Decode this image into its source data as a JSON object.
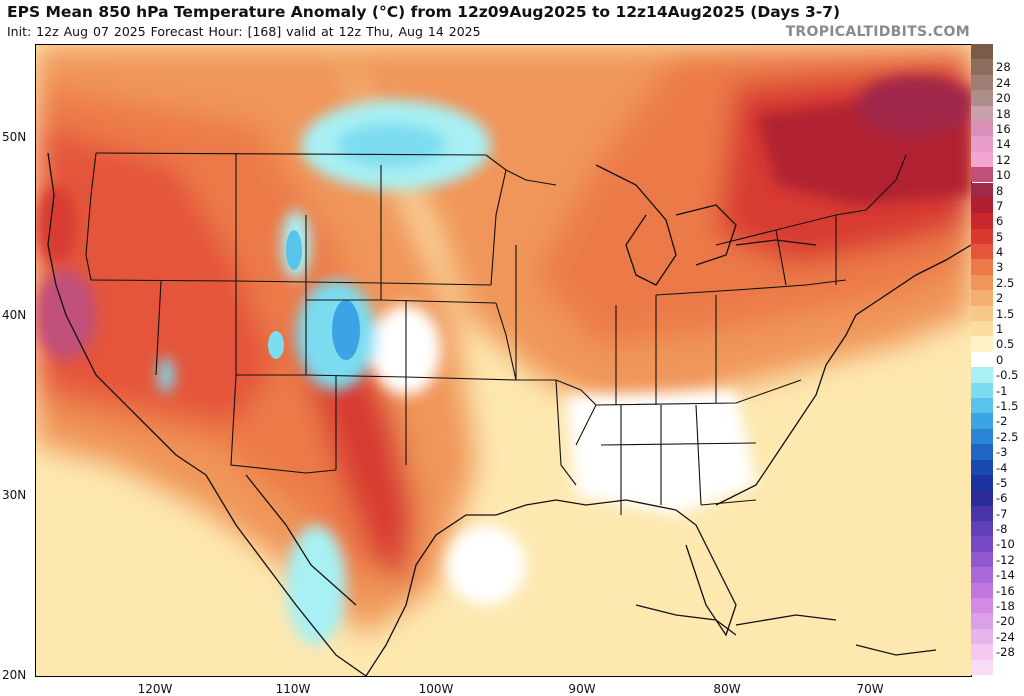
{
  "header": {
    "title": "EPS Mean 850 hPa Temperature Anomaly (°C) from 12z09Aug2025 to 12z14Aug2025 (Days 3-7)",
    "subtitle": "Init: 12z Aug 07 2025   Forecast Hour: [168]   valid at 12z Thu, Aug 14 2025",
    "brand": "TROPICALTIDBITS.COM"
  },
  "map": {
    "lat_labels": [
      "50N",
      "40N",
      "30N",
      "20N"
    ],
    "lon_labels": [
      "120W",
      "110W",
      "100W",
      "90W",
      "80W",
      "70W"
    ]
  },
  "colorbar": {
    "entries": [
      {
        "label": "",
        "color": "#7a5a48"
      },
      {
        "label": "28",
        "color": "#8c6c5c"
      },
      {
        "label": "24",
        "color": "#9d7e72"
      },
      {
        "label": "20",
        "color": "#ad8f88"
      },
      {
        "label": "18",
        "color": "#c8a0ae"
      },
      {
        "label": "16",
        "color": "#d890b8"
      },
      {
        "label": "14",
        "color": "#e89ec8"
      },
      {
        "label": "12",
        "color": "#f4a6d2"
      },
      {
        "label": "10",
        "color": "#c0507a"
      },
      {
        "label": "8",
        "color": "#a02848"
      },
      {
        "label": "7",
        "color": "#b02030"
      },
      {
        "label": "6",
        "color": "#c8282c"
      },
      {
        "label": "5",
        "color": "#d83a30"
      },
      {
        "label": "4",
        "color": "#e4553a"
      },
      {
        "label": "3",
        "color": "#ec7a48"
      },
      {
        "label": "2.5",
        "color": "#f0965a"
      },
      {
        "label": "2",
        "color": "#f4b070"
      },
      {
        "label": "1.5",
        "color": "#f8c888"
      },
      {
        "label": "1",
        "color": "#fcdca0"
      },
      {
        "label": "0.5",
        "color": "#fff2c8"
      },
      {
        "label": "0",
        "color": "#ffffff"
      },
      {
        "label": "-0.5",
        "color": "#a8f0f4"
      },
      {
        "label": "-1",
        "color": "#7cdcf0"
      },
      {
        "label": "-1.5",
        "color": "#58c4ec"
      },
      {
        "label": "-2",
        "color": "#3ca4e4"
      },
      {
        "label": "-2.5",
        "color": "#2c84d4"
      },
      {
        "label": "-3",
        "color": "#2064c4"
      },
      {
        "label": "-4",
        "color": "#1848b0"
      },
      {
        "label": "-5",
        "color": "#1c34a0"
      },
      {
        "label": "-6",
        "color": "#2c2c98"
      },
      {
        "label": "-7",
        "color": "#4834a8"
      },
      {
        "label": "-8",
        "color": "#6040b8"
      },
      {
        "label": "-10",
        "color": "#7848c4"
      },
      {
        "label": "-12",
        "color": "#9058d0"
      },
      {
        "label": "-14",
        "color": "#a868d8"
      },
      {
        "label": "-16",
        "color": "#c078e0"
      },
      {
        "label": "-18",
        "color": "#d08ce4"
      },
      {
        "label": "-20",
        "color": "#dca0e8"
      },
      {
        "label": "-24",
        "color": "#e8b4ec"
      },
      {
        "label": "-28",
        "color": "#f4c8f0"
      },
      {
        "label": "",
        "color": "#f8dcf4"
      }
    ]
  }
}
